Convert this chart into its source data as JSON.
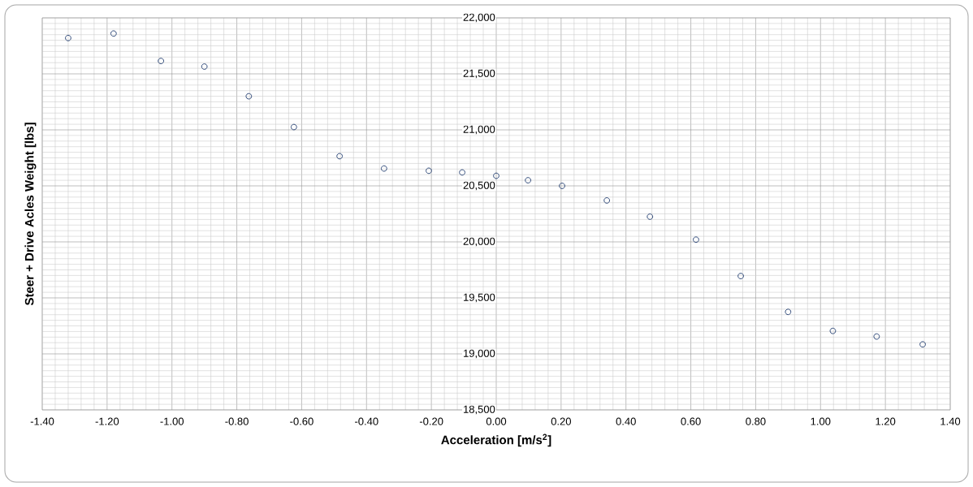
{
  "chart_data": {
    "type": "scatter",
    "xlabel": "Acceleration [m/s$^{2}$]",
    "ylabel": "Steer + Drive Acles Weight [lbs]",
    "x": [
      -1.32,
      -1.18,
      -1.034,
      -0.9,
      -0.763,
      -0.624,
      -0.483,
      -0.346,
      -0.208,
      -0.105,
      0.0,
      0.098,
      0.203,
      0.341,
      0.474,
      0.616,
      0.754,
      0.9,
      1.038,
      1.173,
      1.315
    ],
    "values": [
      21820,
      21860,
      21615,
      21565,
      21300,
      21025,
      20765,
      20655,
      20635,
      20620,
      20590,
      20550,
      20500,
      20370,
      20225,
      20020,
      19695,
      19375,
      19205,
      19155,
      19085
    ],
    "color": "#1f3b6e",
    "marker": "circle",
    "grid": true,
    "xlim": [
      -1.4,
      1.4
    ],
    "xticks": [
      {
        "value": -1.4,
        "label": "-1.40"
      },
      {
        "value": -1.2,
        "label": "-1.20"
      },
      {
        "value": -1.0,
        "label": "-1.00"
      },
      {
        "value": -0.8,
        "label": "-0.80"
      },
      {
        "value": -0.6,
        "label": "-0.60"
      },
      {
        "value": -0.4,
        "label": "-0.40"
      },
      {
        "value": -0.2,
        "label": "-0.20"
      },
      {
        "value": 0.0,
        "label": "0.00"
      },
      {
        "value": 0.2,
        "label": "0.20"
      },
      {
        "value": 0.4,
        "label": "0.40"
      },
      {
        "value": 0.6,
        "label": "0.60"
      },
      {
        "value": 0.8,
        "label": "0.80"
      },
      {
        "value": 1.0,
        "label": "1.00"
      },
      {
        "value": 1.2,
        "label": "1.20"
      },
      {
        "value": 1.4,
        "label": "1.40"
      }
    ],
    "ylim": [
      18500,
      22000
    ],
    "yticks": [
      {
        "value": 18500,
        "label": "18,500"
      },
      {
        "value": 19000,
        "label": "19,000"
      },
      {
        "value": 19500,
        "label": "19,500"
      },
      {
        "value": 20000,
        "label": "20,000"
      },
      {
        "value": 20500,
        "label": "20,500"
      },
      {
        "value": 21000,
        "label": "21,000"
      },
      {
        "value": 21500,
        "label": "21,500"
      },
      {
        "value": 22000,
        "label": "22,000"
      }
    ]
  }
}
